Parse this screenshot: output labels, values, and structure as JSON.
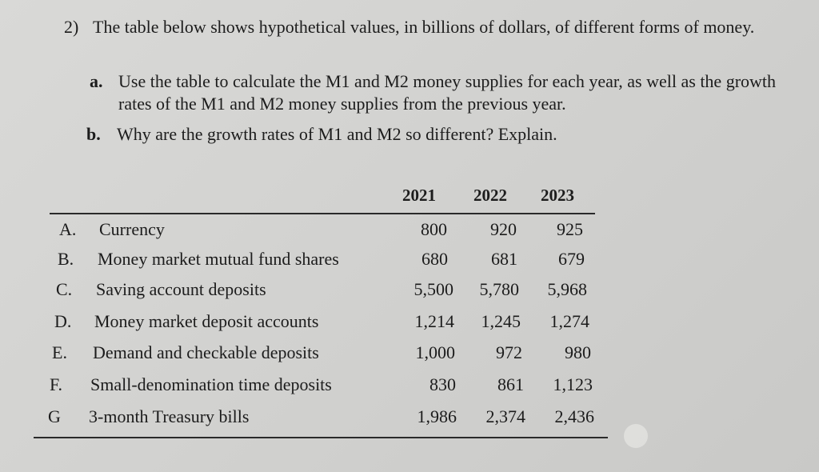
{
  "question": {
    "number": "2)",
    "text": "The table below shows hypothetical values, in billions of dollars, of different forms of money.",
    "parts": [
      {
        "label": "a.",
        "text": "Use the table to calculate the M1 and M2 money supplies for each year, as well as the growth rates of the M1 and M2 money supplies from the previous year."
      },
      {
        "label": "b.",
        "text": "Why are the growth rates of M1 and M2 so different? Explain."
      }
    ]
  },
  "table": {
    "years": [
      "2021",
      "2022",
      "2023"
    ],
    "rows": [
      {
        "letter": "A.",
        "label": "Currency",
        "values": [
          "800",
          "920",
          "925"
        ]
      },
      {
        "letter": "B.",
        "label": "Money market mutual fund shares",
        "values": [
          "680",
          "681",
          "679"
        ]
      },
      {
        "letter": "C.",
        "label": "Saving account deposits",
        "values": [
          "5,500",
          "5,780",
          "5,968"
        ]
      },
      {
        "letter": "D.",
        "label": "Money market deposit accounts",
        "values": [
          "1,214",
          "1,245",
          "1,274"
        ]
      },
      {
        "letter": "E.",
        "label": "Demand and checkable deposits",
        "values": [
          "1,000",
          "972",
          "980"
        ]
      },
      {
        "letter": "F.",
        "label": "Small-denomination time deposits",
        "values": [
          "830",
          "861",
          "1,123"
        ]
      },
      {
        "letter": "G",
        "label": "3-month Treasury bills",
        "values": [
          "1,986",
          "2,374",
          "2,436"
        ]
      }
    ]
  }
}
